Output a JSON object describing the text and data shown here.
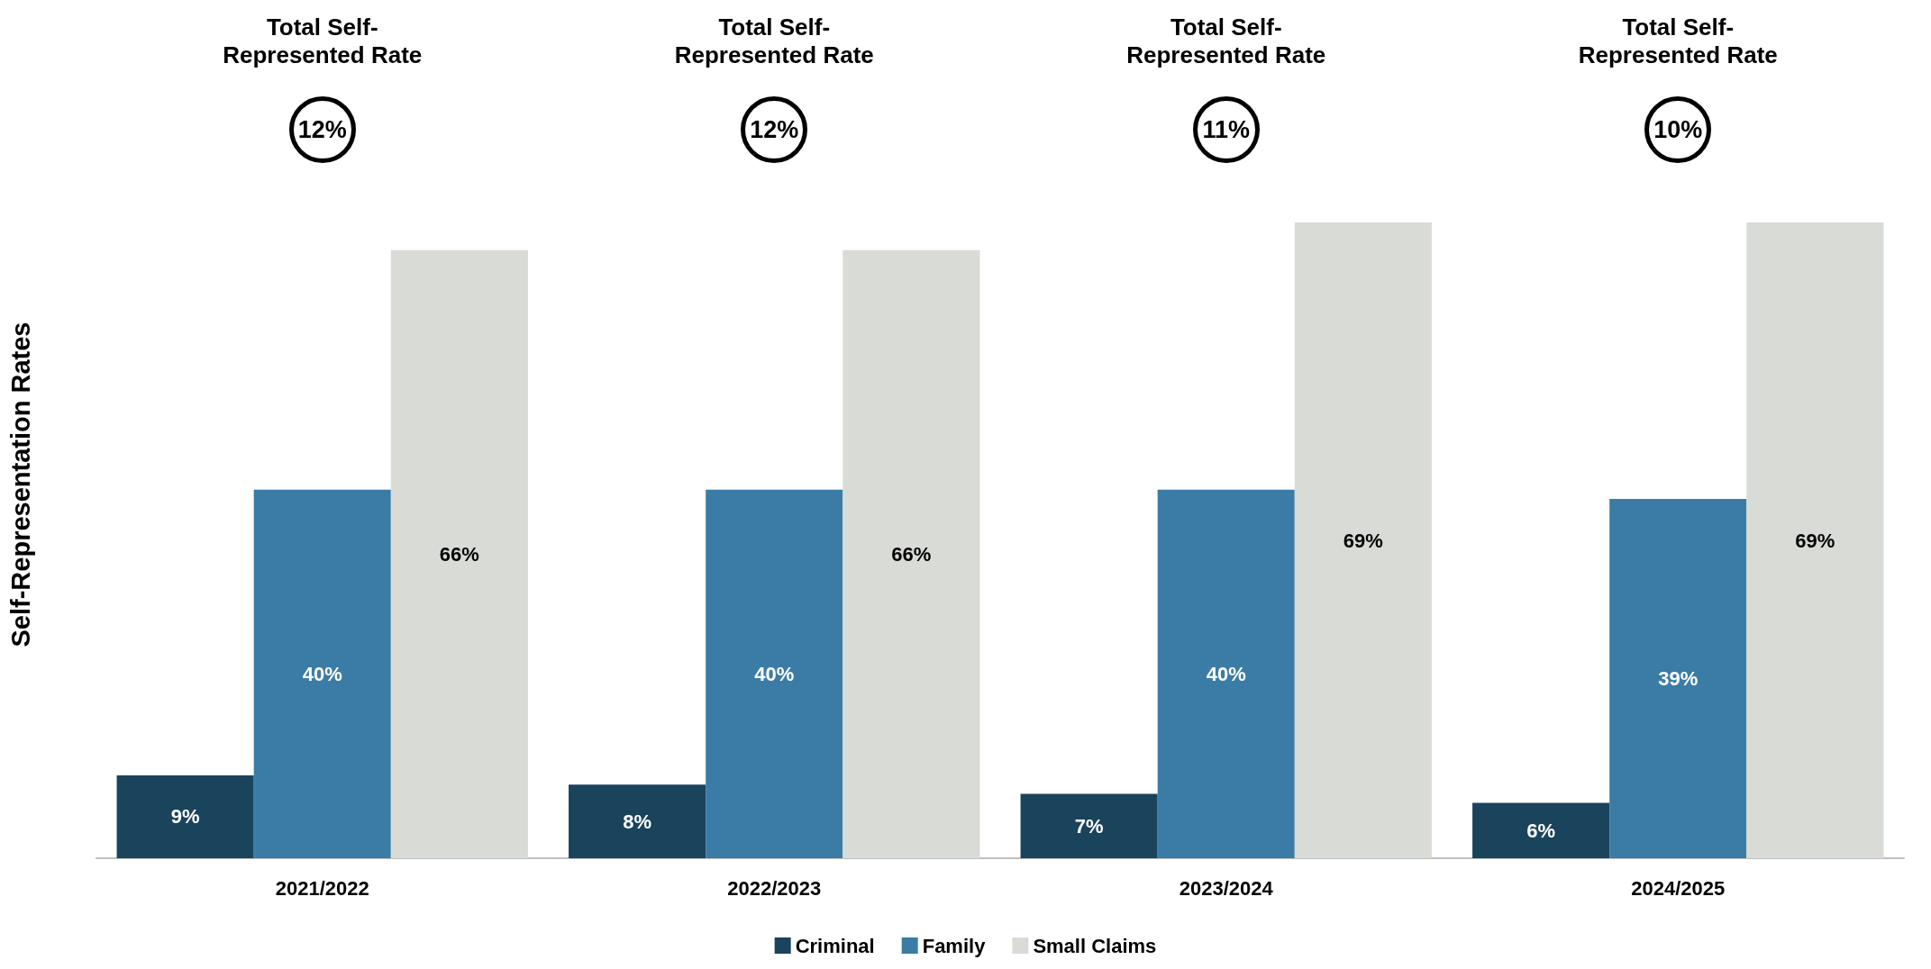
{
  "chart_data": {
    "type": "bar",
    "ylabel": "Self-Representation Rates",
    "categories": [
      "2021/2022",
      "2022/2023",
      "2023/2024",
      "2024/2025"
    ],
    "series": [
      {
        "name": "Criminal",
        "color": "#1a435c",
        "values": [
          9,
          8,
          7,
          6
        ],
        "value_labels": [
          "9%",
          "8%",
          "7%",
          "6%"
        ]
      },
      {
        "name": "Family",
        "color": "#3b7ca6",
        "values": [
          40,
          40,
          40,
          39
        ],
        "value_labels": [
          "40%",
          "40%",
          "40%",
          "39%"
        ]
      },
      {
        "name": "Small Claims",
        "color": "#d9dbd7",
        "values": [
          66,
          66,
          69,
          69
        ],
        "value_labels": [
          "66%",
          "66%",
          "69%",
          "69%"
        ]
      }
    ],
    "legend": "bottom",
    "annotations": [
      "Total Self-Represented Rate",
      "12%",
      "Total Self-Represented Rate",
      "12%",
      "Total Self-Represented Rate",
      "11%",
      "Total Self-Represented Rate",
      "10%"
    ]
  }
}
